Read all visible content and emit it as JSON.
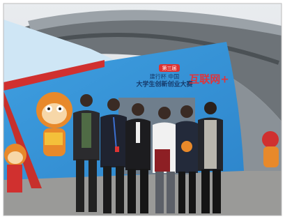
{
  "sign": {
    "badge": "第三届",
    "sponsor": "建行杯 中国",
    "event": "大学生创新创业大赛",
    "brand": "互联网+"
  }
}
